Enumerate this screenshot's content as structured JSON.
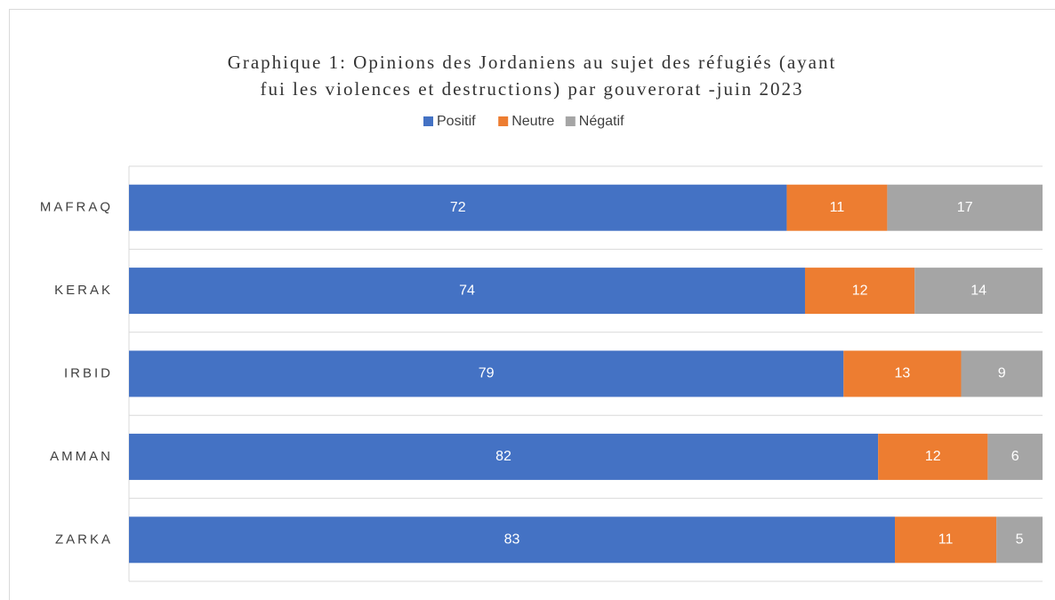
{
  "chart_data": {
    "type": "bar",
    "orientation": "horizontal",
    "stack": "percent",
    "title": [
      "Graphique 1: Opinions des Jordaniens au sujet des réfugiés (ayant",
      "fui les violences et destructions) par gouverorat -juin 2023"
    ],
    "categories": [
      "MAFRAQ",
      "KERAK",
      "IRBID",
      "AMMAN",
      "ZARKA"
    ],
    "series": [
      {
        "name": "Positif",
        "color": "#4472c4",
        "values": [
          72,
          74,
          79,
          82,
          83
        ]
      },
      {
        "name": "Neutre",
        "color": "#ed7d31",
        "values": [
          11,
          12,
          13,
          12,
          11
        ]
      },
      {
        "name": "Négatif",
        "color": "#a5a5a5",
        "values": [
          17,
          14,
          9,
          6,
          5
        ]
      }
    ],
    "legend": "top",
    "grid": true
  }
}
